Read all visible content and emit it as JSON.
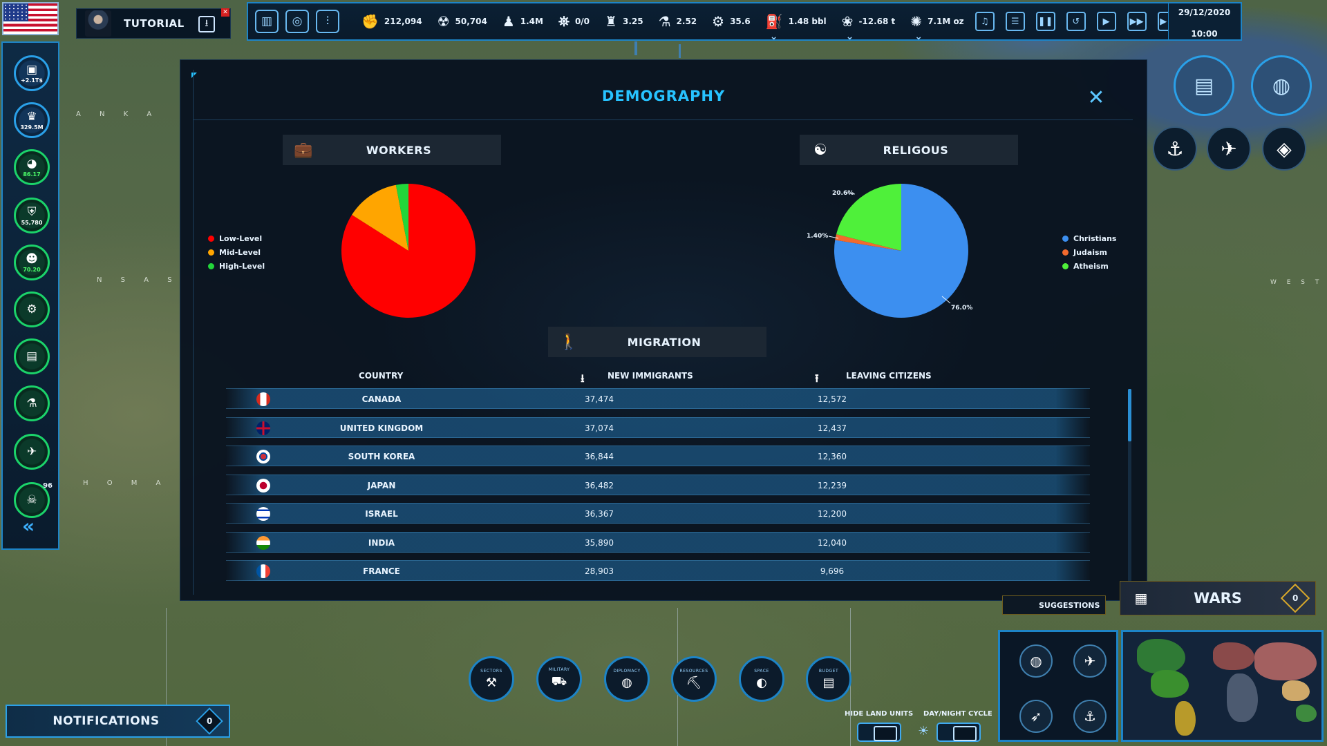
{
  "topbar": {
    "tutorial_label": "TUTORIAL",
    "resources": [
      {
        "icon": "fist-icon",
        "glyph": "✊",
        "value": "212,094"
      },
      {
        "icon": "nuclear-icon",
        "glyph": "☢",
        "value": "50,704"
      },
      {
        "icon": "soldier-icon",
        "glyph": "♟",
        "value": "1.4M"
      },
      {
        "icon": "satellite-icon",
        "glyph": "⛯",
        "value": "0/0"
      },
      {
        "icon": "factory-icon",
        "glyph": "♜",
        "value": "3.25"
      },
      {
        "icon": "flask-icon",
        "glyph": "⚗",
        "value": "2.52"
      },
      {
        "icon": "gear-resource-icon",
        "glyph": "⚙",
        "value": "35.6"
      },
      {
        "icon": "oil-icon",
        "glyph": "⛽",
        "value": "1.48 bbl"
      },
      {
        "icon": "grain-icon",
        "glyph": "❀",
        "value": "-12.68 t"
      },
      {
        "icon": "gold-icon",
        "glyph": "✺",
        "value": "7.1M oz"
      }
    ],
    "date": "29/12/2020",
    "time": "10:00"
  },
  "sidebar": {
    "items": [
      {
        "name": "budget",
        "glyph": "▣",
        "value": "+2.1T$"
      },
      {
        "name": "population",
        "glyph": "♛",
        "value": "329.5M"
      },
      {
        "name": "world",
        "glyph": "◕",
        "value": "86.17"
      },
      {
        "name": "security",
        "glyph": "⛨",
        "value": "55,780"
      },
      {
        "name": "approval",
        "glyph": "☻",
        "value": "70.20"
      },
      {
        "name": "settings",
        "glyph": "⚙",
        "value": ""
      },
      {
        "name": "documents",
        "glyph": "▤",
        "value": ""
      },
      {
        "name": "research",
        "glyph": "⚗",
        "value": ""
      },
      {
        "name": "aviation",
        "glyph": "✈",
        "value": ""
      },
      {
        "name": "warheads",
        "glyph": "☠",
        "value": ""
      }
    ],
    "warheads_badge": "96"
  },
  "map_labels": [
    "A N K A",
    "N S A S",
    "H O M A",
    "W E S T"
  ],
  "modal": {
    "title": "DEMOGRAPHY",
    "workers": {
      "title": "WORKERS",
      "legend": [
        {
          "label": "Low-Level",
          "color": "#ff0000"
        },
        {
          "label": "Mid-Level",
          "color": "#ffa500"
        },
        {
          "label": "High-Level",
          "color": "#22d63a"
        }
      ]
    },
    "religious": {
      "title": "RELIGOUS",
      "legend": [
        {
          "label": "Christians",
          "color": "#3c8ff0"
        },
        {
          "label": "Judaism",
          "color": "#f26a2e"
        },
        {
          "label": "Atheism",
          "color": "#4ff03a"
        }
      ],
      "slice_labels": {
        "christians": "76.0%",
        "judaism": "1.40%",
        "atheism": "20.6%"
      }
    },
    "migration": {
      "title": "MIGRATION",
      "headers": {
        "country": "COUNTRY",
        "new": "NEW IMMIGRANTS",
        "leaving": "LEAVING CITIZENS"
      },
      "rows": [
        {
          "country": "CANADA",
          "flag": "canada",
          "new": "37,474",
          "leaving": "12,572"
        },
        {
          "country": "UNITED KINGDOM",
          "flag": "uk",
          "new": "37,074",
          "leaving": "12,437"
        },
        {
          "country": "SOUTH KOREA",
          "flag": "korea",
          "new": "36,844",
          "leaving": "12,360"
        },
        {
          "country": "JAPAN",
          "flag": "japan",
          "new": "36,482",
          "leaving": "12,239"
        },
        {
          "country": "ISRAEL",
          "flag": "israel",
          "new": "36,367",
          "leaving": "12,200"
        },
        {
          "country": "INDIA",
          "flag": "india",
          "new": "35,890",
          "leaving": "12,040"
        },
        {
          "country": "FRANCE",
          "flag": "france",
          "new": "28,903",
          "leaving": "9,696"
        }
      ]
    }
  },
  "chart_data": [
    {
      "type": "pie",
      "title": "WORKERS",
      "categories": [
        "Low-Level",
        "Mid-Level",
        "High-Level"
      ],
      "values": [
        84,
        13,
        3
      ],
      "colors": [
        "#ff0000",
        "#ffa500",
        "#22d63a"
      ],
      "legend": "left"
    },
    {
      "type": "pie",
      "title": "RELIGOUS",
      "categories": [
        "Christians",
        "Judaism",
        "Atheism"
      ],
      "values": [
        76.0,
        1.4,
        20.6
      ],
      "colors": [
        "#3c8ff0",
        "#f26a2e",
        "#4ff03a"
      ],
      "legend": "right"
    }
  ],
  "bottom_right": {
    "suggestions": "SUGGESTIONS",
    "wars": "WARS",
    "wars_count": "0",
    "hide_land_units": "HIDE LAND UNITS",
    "day_night_cycle": "DAY/NIGHT CYCLE"
  },
  "notifications": {
    "label": "NOTIFICATIONS",
    "count": "0"
  },
  "categories": [
    {
      "label": "SECTORS",
      "glyph": "⚒"
    },
    {
      "label": "MILITARY",
      "glyph": "⛟"
    },
    {
      "label": "DIPLOMACY",
      "glyph": "◍"
    },
    {
      "label": "RESOURCES",
      "glyph": "⛏"
    },
    {
      "label": "SPACE",
      "glyph": "◐"
    },
    {
      "label": "BUDGET",
      "glyph": "▤"
    }
  ]
}
